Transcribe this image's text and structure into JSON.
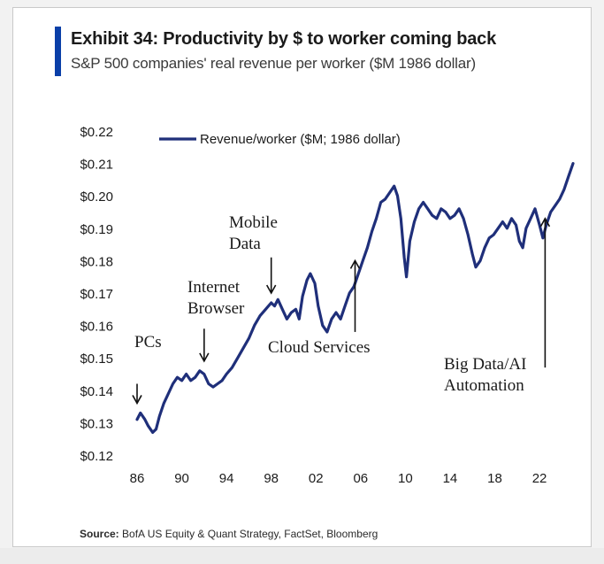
{
  "header": {
    "title": "Exhibit 34: Productivity by $ to worker coming back",
    "subtitle": "S&P 500 companies' real revenue per worker ($M 1986 dollar)"
  },
  "footer": {
    "source_label": "Source:",
    "source_text": "BofA US Equity & Quant Strategy, FactSet, Bloomberg"
  },
  "colors": {
    "series": "#1f2f7a",
    "accent": "#0a3fa8",
    "text": "#1b1b1b"
  },
  "chart_data": {
    "type": "line",
    "title": "Exhibit 34: Productivity by $ to worker coming back",
    "subtitle": "S&P 500 companies' real revenue per worker ($M 1986 dollar)",
    "xlabel": "",
    "ylabel": "",
    "xlim": [
      1986,
      2025
    ],
    "ylim": [
      0.12,
      0.22
    ],
    "x_ticks": [
      "86",
      "90",
      "94",
      "98",
      "02",
      "06",
      "10",
      "14",
      "18",
      "22"
    ],
    "y_ticks": [
      "$0.12",
      "$0.13",
      "$0.14",
      "$0.15",
      "$0.16",
      "$0.17",
      "$0.18",
      "$0.19",
      "$0.20",
      "$0.21",
      "$0.22"
    ],
    "grid": false,
    "legend_position": "top-left",
    "series": [
      {
        "name": "Revenue/worker ($M; 1986 dollar)",
        "points": [
          [
            1986.0,
            0.131
          ],
          [
            1986.3,
            0.133
          ],
          [
            1986.7,
            0.131
          ],
          [
            1987.0,
            0.129
          ],
          [
            1987.4,
            0.127
          ],
          [
            1987.7,
            0.128
          ],
          [
            1988.0,
            0.132
          ],
          [
            1988.4,
            0.136
          ],
          [
            1988.8,
            0.139
          ],
          [
            1989.2,
            0.142
          ],
          [
            1989.6,
            0.144
          ],
          [
            1990.0,
            0.143
          ],
          [
            1990.4,
            0.145
          ],
          [
            1990.8,
            0.143
          ],
          [
            1991.2,
            0.144
          ],
          [
            1991.6,
            0.146
          ],
          [
            1992.0,
            0.145
          ],
          [
            1992.4,
            0.142
          ],
          [
            1992.8,
            0.141
          ],
          [
            1993.2,
            0.142
          ],
          [
            1993.6,
            0.143
          ],
          [
            1994.0,
            0.145
          ],
          [
            1994.5,
            0.147
          ],
          [
            1995.0,
            0.15
          ],
          [
            1995.5,
            0.153
          ],
          [
            1996.0,
            0.156
          ],
          [
            1996.5,
            0.16
          ],
          [
            1997.0,
            0.163
          ],
          [
            1997.5,
            0.165
          ],
          [
            1998.0,
            0.167
          ],
          [
            1998.3,
            0.166
          ],
          [
            1998.6,
            0.168
          ],
          [
            1999.0,
            0.165
          ],
          [
            1999.4,
            0.162
          ],
          [
            1999.8,
            0.164
          ],
          [
            2000.2,
            0.165
          ],
          [
            2000.5,
            0.162
          ],
          [
            2000.8,
            0.169
          ],
          [
            2001.2,
            0.174
          ],
          [
            2001.5,
            0.176
          ],
          [
            2001.9,
            0.173
          ],
          [
            2002.2,
            0.166
          ],
          [
            2002.6,
            0.16
          ],
          [
            2003.0,
            0.158
          ],
          [
            2003.4,
            0.162
          ],
          [
            2003.8,
            0.164
          ],
          [
            2004.2,
            0.162
          ],
          [
            2004.6,
            0.166
          ],
          [
            2005.0,
            0.17
          ],
          [
            2005.4,
            0.172
          ],
          [
            2005.8,
            0.176
          ],
          [
            2006.2,
            0.18
          ],
          [
            2006.6,
            0.184
          ],
          [
            2007.0,
            0.189
          ],
          [
            2007.4,
            0.193
          ],
          [
            2007.8,
            0.198
          ],
          [
            2008.2,
            0.199
          ],
          [
            2008.6,
            0.201
          ],
          [
            2009.0,
            0.203
          ],
          [
            2009.3,
            0.2
          ],
          [
            2009.6,
            0.193
          ],
          [
            2009.9,
            0.181
          ],
          [
            2010.1,
            0.175
          ],
          [
            2010.4,
            0.186
          ],
          [
            2010.8,
            0.192
          ],
          [
            2011.2,
            0.196
          ],
          [
            2011.6,
            0.198
          ],
          [
            2012.0,
            0.196
          ],
          [
            2012.4,
            0.194
          ],
          [
            2012.8,
            0.193
          ],
          [
            2013.2,
            0.196
          ],
          [
            2013.6,
            0.195
          ],
          [
            2014.0,
            0.193
          ],
          [
            2014.4,
            0.194
          ],
          [
            2014.8,
            0.196
          ],
          [
            2015.2,
            0.193
          ],
          [
            2015.6,
            0.188
          ],
          [
            2016.0,
            0.182
          ],
          [
            2016.3,
            0.178
          ],
          [
            2016.7,
            0.18
          ],
          [
            2017.1,
            0.184
          ],
          [
            2017.5,
            0.187
          ],
          [
            2017.9,
            0.188
          ],
          [
            2018.3,
            0.19
          ],
          [
            2018.7,
            0.192
          ],
          [
            2019.1,
            0.19
          ],
          [
            2019.5,
            0.193
          ],
          [
            2019.9,
            0.191
          ],
          [
            2020.2,
            0.186
          ],
          [
            2020.5,
            0.184
          ],
          [
            2020.8,
            0.19
          ],
          [
            2021.2,
            0.193
          ],
          [
            2021.6,
            0.196
          ],
          [
            2022.0,
            0.191
          ],
          [
            2022.3,
            0.187
          ],
          [
            2022.6,
            0.191
          ],
          [
            2023.0,
            0.195
          ],
          [
            2023.4,
            0.197
          ],
          [
            2023.8,
            0.199
          ],
          [
            2024.2,
            0.202
          ],
          [
            2024.6,
            0.206
          ],
          [
            2025.0,
            0.21
          ]
        ]
      }
    ],
    "annotations": [
      {
        "lines": [
          "PCs"
        ],
        "x": 1986.0,
        "arrow_from": 0.142,
        "arrow_to": 0.136
      },
      {
        "lines": [
          "Internet",
          "Browser"
        ],
        "x": 1992.0,
        "arrow_from": 0.159,
        "arrow_to": 0.149
      },
      {
        "lines": [
          "Mobile",
          "Data"
        ],
        "x": 1998.0,
        "arrow_from": 0.181,
        "arrow_to": 0.17
      },
      {
        "lines": [
          "Cloud Services"
        ],
        "x": 2005.5,
        "arrow_from": 0.158,
        "arrow_to": 0.18
      },
      {
        "lines": [
          "Big Data/AI",
          "Automation"
        ],
        "x": 2022.5,
        "arrow_from": 0.147,
        "arrow_to": 0.193
      }
    ]
  }
}
